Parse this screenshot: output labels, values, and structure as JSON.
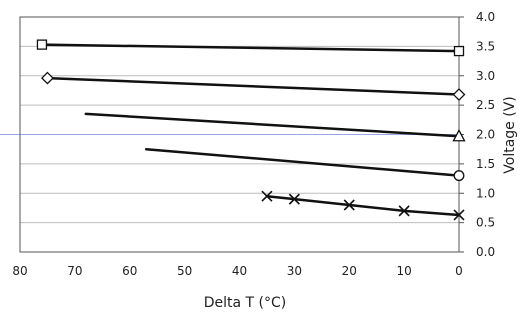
{
  "chart_data": {
    "type": "line",
    "title": "",
    "xlabel": "Delta T (°C)",
    "ylabel": "Voltage (V)",
    "xlim": [
      80,
      0
    ],
    "ylim": [
      0,
      4
    ],
    "x_ticks": [
      "80",
      "70",
      "60",
      "50",
      "40",
      "30",
      "20",
      "10",
      "0"
    ],
    "y_ticks": [
      "0.0",
      "0.5",
      "1.0",
      "1.5",
      "2.0",
      "2.5",
      "3.0",
      "3.5",
      "4.0"
    ],
    "grid": "horizontal",
    "legend": "none",
    "y_axis_side": "right",
    "colors": {
      "line": "#111111",
      "grid": "#bdbdbd",
      "highlight_grid": "#9aa7e6",
      "axis": "#555555"
    },
    "series": [
      {
        "marker": "square",
        "x": [
          76,
          0
        ],
        "y": [
          3.53,
          3.42
        ],
        "marked_points": [
          0,
          1
        ]
      },
      {
        "marker": "diamond",
        "x": [
          75,
          0
        ],
        "y": [
          2.96,
          2.68
        ],
        "marked_points": [
          0,
          1
        ]
      },
      {
        "marker": "triangle",
        "x": [
          68,
          0
        ],
        "y": [
          2.35,
          1.97
        ],
        "marked_points": [
          1
        ]
      },
      {
        "marker": "circle",
        "x": [
          57,
          0
        ],
        "y": [
          1.75,
          1.3
        ],
        "marked_points": [
          1
        ]
      },
      {
        "marker": "x",
        "x": [
          35,
          30,
          20,
          10,
          0
        ],
        "y": [
          0.95,
          0.9,
          0.8,
          0.7,
          0.63
        ],
        "marked_points": [
          0,
          1,
          2,
          3,
          4
        ]
      }
    ]
  }
}
